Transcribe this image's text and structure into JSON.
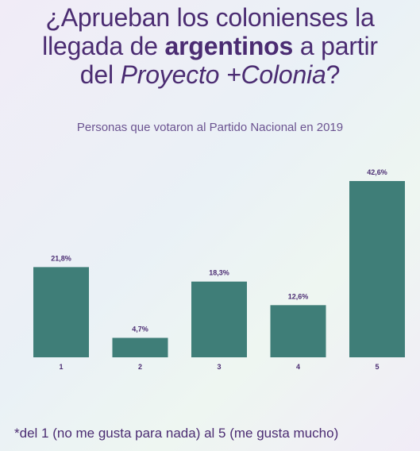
{
  "title": {
    "part1": "¿Aprueban los colonienses la",
    "part2": "llegada de ",
    "bold": "argentinos",
    "part3": " a partir",
    "part4": "del ",
    "italic": "Proyecto +Colonia",
    "part5": "?"
  },
  "footnote": "*del 1 (no me gusta para nada) al 5 (me gusta mucho)",
  "colors": {
    "bar": "#3f7e78",
    "text": "#4b2c72"
  },
  "chart_data": {
    "type": "bar",
    "title": "Personas que votaron al Partido Nacional en 2019",
    "categories": [
      "1",
      "2",
      "3",
      "4",
      "5"
    ],
    "values": [
      21.8,
      4.7,
      18.3,
      12.6,
      42.6
    ],
    "value_labels": [
      "21,8%",
      "4,7%",
      "18,3%",
      "12,6%",
      "42,6%"
    ],
    "ylim": [
      0,
      42.6
    ],
    "grid": false,
    "xlabel": "",
    "ylabel": ""
  }
}
